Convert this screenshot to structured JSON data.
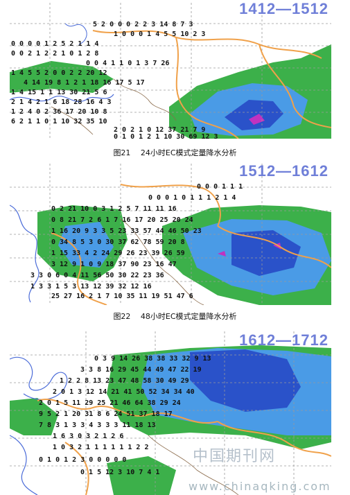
{
  "figures": [
    {
      "range_title": "1412—1512",
      "caption": "图21　 24小时EC模式定量降水分析",
      "rows": [
        "5 2 0 0 0 2 2 3 14 8 7 3",
        "1 0 0 0 1 4 5 5 10 2 3",
        "0 0 0 0 1 2 5 2 1 1 4",
        "0 0 2 1 2 2 1 0 1 2 8",
        "0 0 4 1 1 0 1 3 7 26",
        "1 4 5 5 2 0 0 2 2 20 12",
        "4 14 19 8 1 2 1 18 16 17 5 17",
        "1 4 15 1 1 13 30 21 5 6",
        "2 1 4 2 1 6 18 28 16 4 3",
        "1 2 4 0 2 36 17 20 10 8",
        "6 2 1 1 0 1 10 32 35 10",
        "2 0 2 1 0 12 37 21 7 9",
        "0 1 0 1 2 1 10 30 69 12 3"
      ]
    },
    {
      "range_title": "1512—1612",
      "caption": "图22　 48小时EC模式定量降水分析",
      "rows": [
        "0 0 0 1 1 1",
        "0 0 0 1 0 1 1 1 2 1 4",
        "0 2 21 10 0 3 1 2 5 7 11 11 16",
        "0 8 21 7 2 6 1 7 16 17 20 25 20 24",
        "1 16 20 9 3 3 5 23 33 57 44 46 50 23",
        "0 34 8 5 3 0 30 37 62 78 59 20 8",
        "1 15 33 4 2 24 29 26 23 39 26 59",
        "3 12 9 1 0 9 18 37 90 23 16 47",
        "3 3 0 6 0 4 11 56 50 30 22 23 36",
        "1 3 3 1 5 3 13 12 39 32 12 16",
        "25 27 16 2 1 7 10 35 11 19 51 47 6"
      ]
    },
    {
      "range_title": "1612—1712",
      "caption": "",
      "rows": [
        "0 3 9 14 26 38 38 33 32 9 13",
        "3 3 8 16 29 45 44 49 47 22 19",
        "1 2 2 8 13 23 47 48 58 30 49 29",
        "2 0 1 3 12 14 21 41 50 52 34 34 40",
        "2 0 1 5 11 29 25 21 46 64 38 29 24",
        "9 5 2 1 20 31 8 6 24 51 37 18 17",
        "7 8 3 1 3 3 4 3 3 3 11 18 13",
        "1 6 3 0 3 2 1 2 6",
        "1 0 3 2 1 1 1 1 1 1 2 2",
        "0 1 0 1 2 3 0 0 0 0 0",
        "0 1 5 12 3 10 7 4 1"
      ]
    }
  ],
  "watermark": {
    "logo_text": "中国期刊网",
    "url_text": "www.chinaqking.com"
  },
  "colors": {
    "light_green": "#3cb04a",
    "blue": "#3f8fe3",
    "dark_blue": "#2a52c9",
    "magenta": "#c032c0",
    "province_orange": "#f0a14a",
    "coast_blue": "#4a6bd8",
    "grid_gray": "#9a9a9a",
    "title_blue": "#6f7fd8"
  }
}
